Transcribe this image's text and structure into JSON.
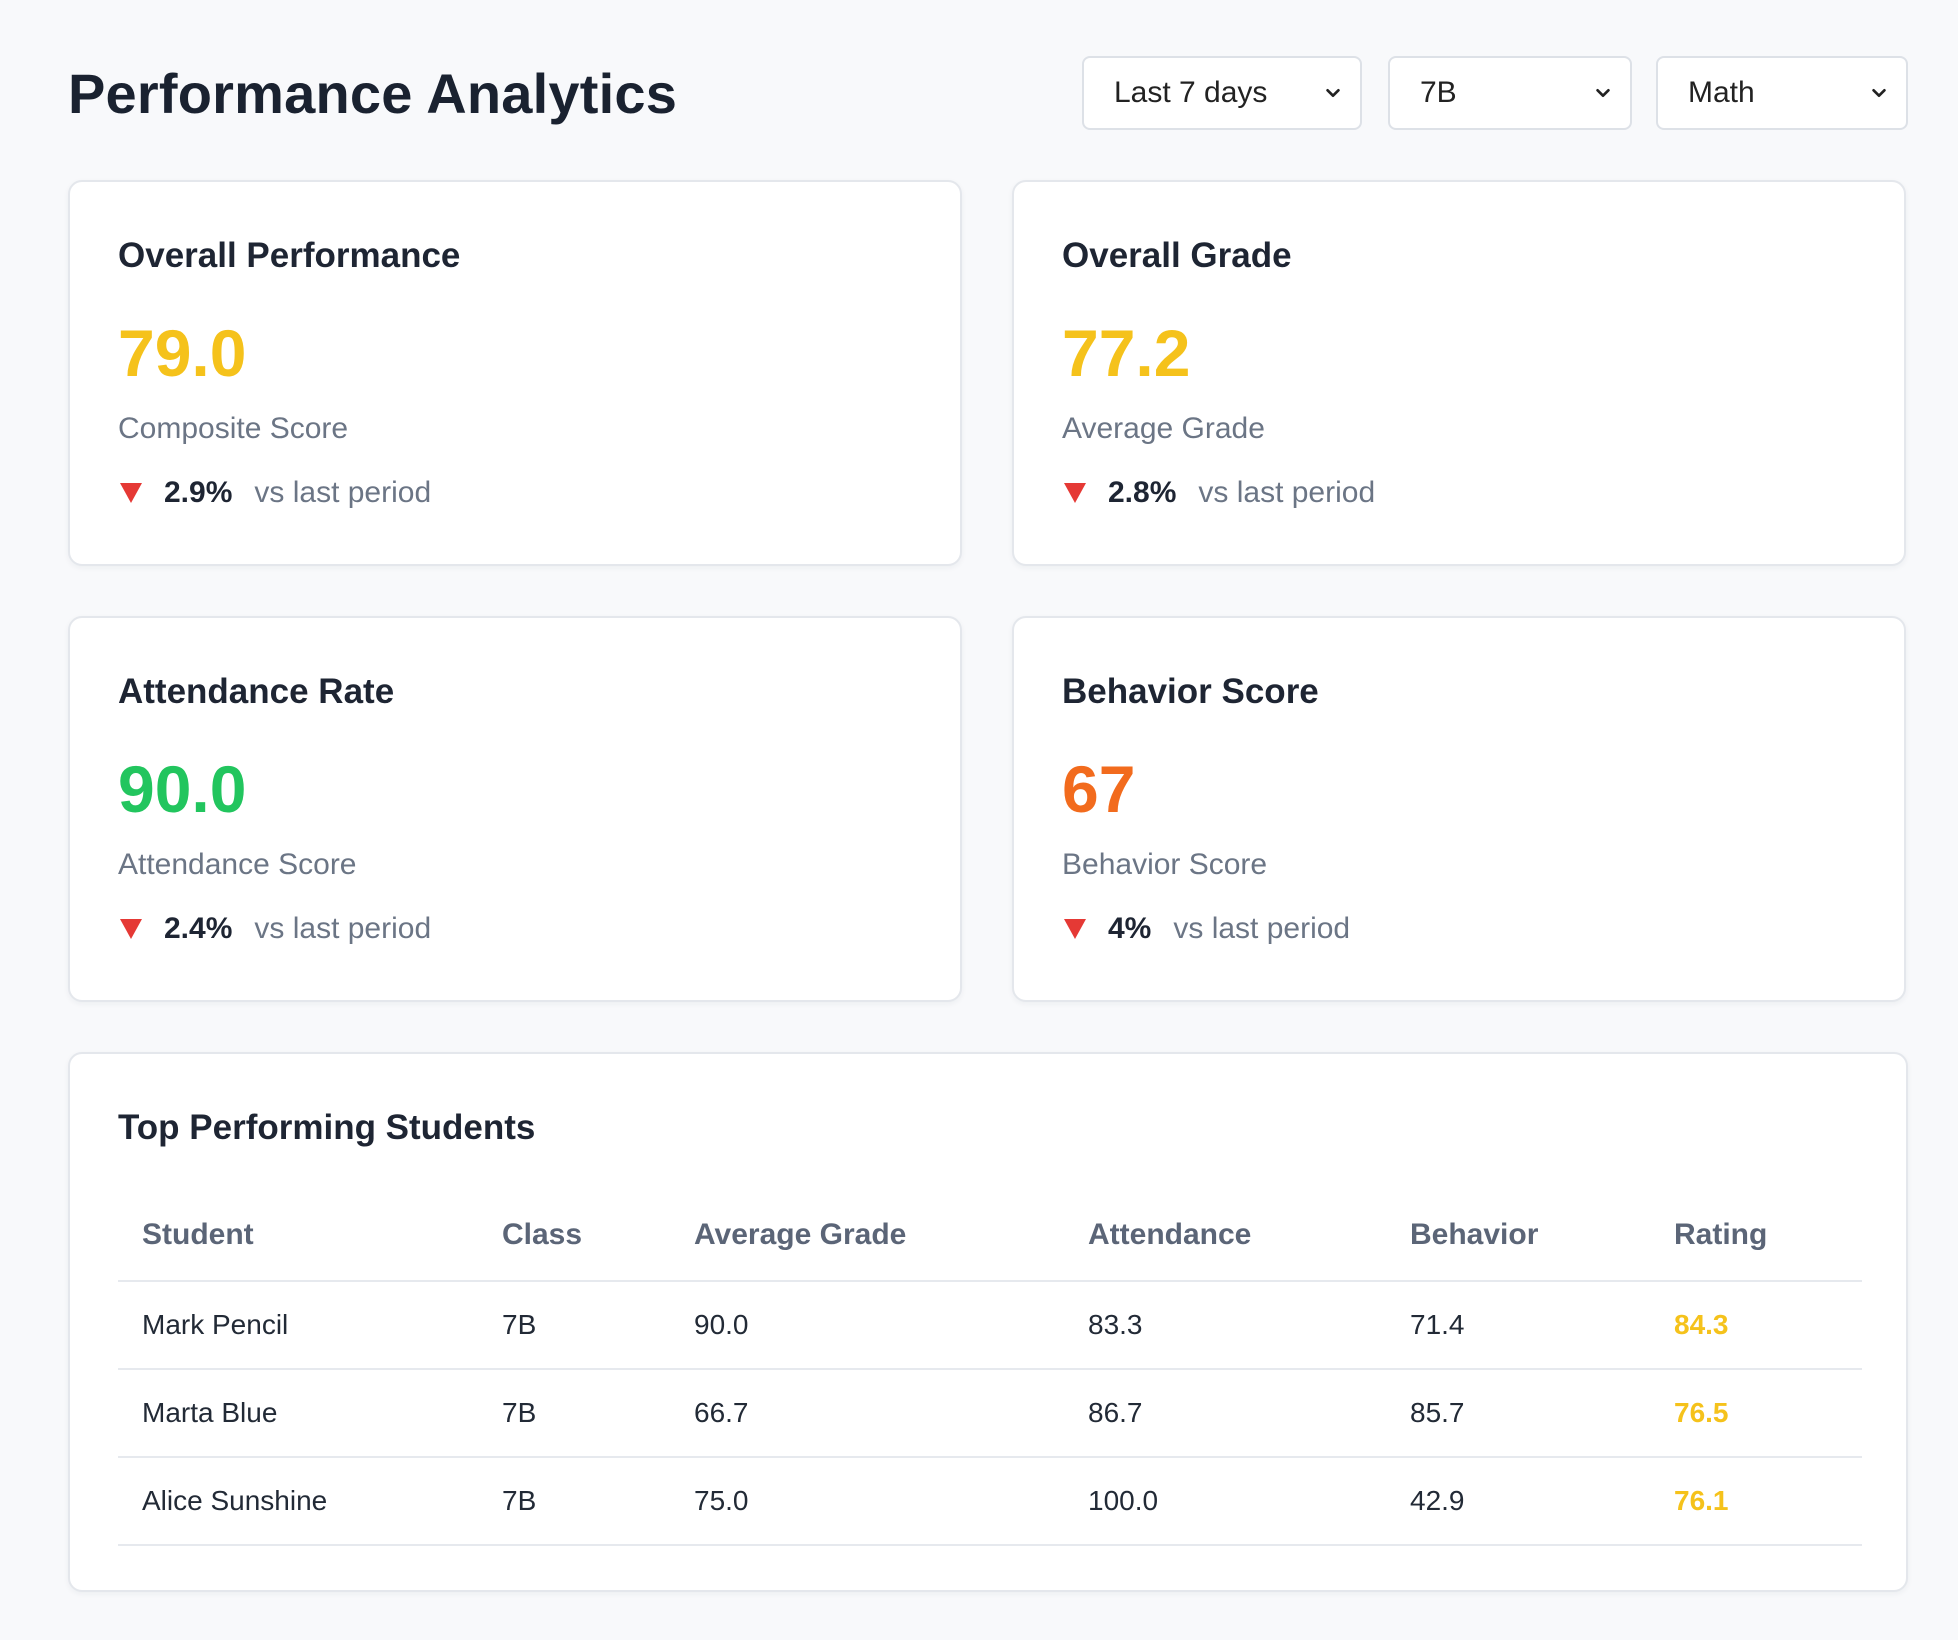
{
  "header": {
    "title": "Performance Analytics",
    "filters": {
      "period": "Last 7 days",
      "class": "7B",
      "subject": "Math"
    }
  },
  "colors": {
    "yellow": "#f5c21b",
    "green": "#22c55e",
    "orange": "#f26b1d",
    "down_red": "#e53935"
  },
  "metrics": {
    "performance": {
      "title": "Overall Performance",
      "value": "79.0",
      "label": "Composite Score",
      "change": "2.9%",
      "change_text": "vs last period",
      "trend": "down",
      "color": "#f5c21b"
    },
    "grade": {
      "title": "Overall Grade",
      "value": "77.2",
      "label": "Average Grade",
      "change": "2.8%",
      "change_text": "vs last period",
      "trend": "down",
      "color": "#f5c21b"
    },
    "attendance": {
      "title": "Attendance Rate",
      "value": "90.0",
      "label": "Attendance Score",
      "change": "2.4%",
      "change_text": "vs last period",
      "trend": "down",
      "color": "#22c55e"
    },
    "behavior": {
      "title": "Behavior Score",
      "value": "67",
      "label": "Behavior Score",
      "change": "4%",
      "change_text": "vs last period",
      "trend": "down",
      "color": "#f26b1d"
    }
  },
  "students": {
    "title": "Top Performing Students",
    "columns": [
      "Student",
      "Class",
      "Average Grade",
      "Attendance",
      "Behavior",
      "Rating"
    ],
    "rows": [
      {
        "student": "Mark Pencil",
        "class": "7B",
        "average_grade": "90.0",
        "attendance": "83.3",
        "behavior": "71.4",
        "rating": "84.3"
      },
      {
        "student": "Marta Blue",
        "class": "7B",
        "average_grade": "66.7",
        "attendance": "86.7",
        "behavior": "85.7",
        "rating": "76.5"
      },
      {
        "student": "Alice Sunshine",
        "class": "7B",
        "average_grade": "75.0",
        "attendance": "100.0",
        "behavior": "42.9",
        "rating": "76.1"
      }
    ]
  }
}
